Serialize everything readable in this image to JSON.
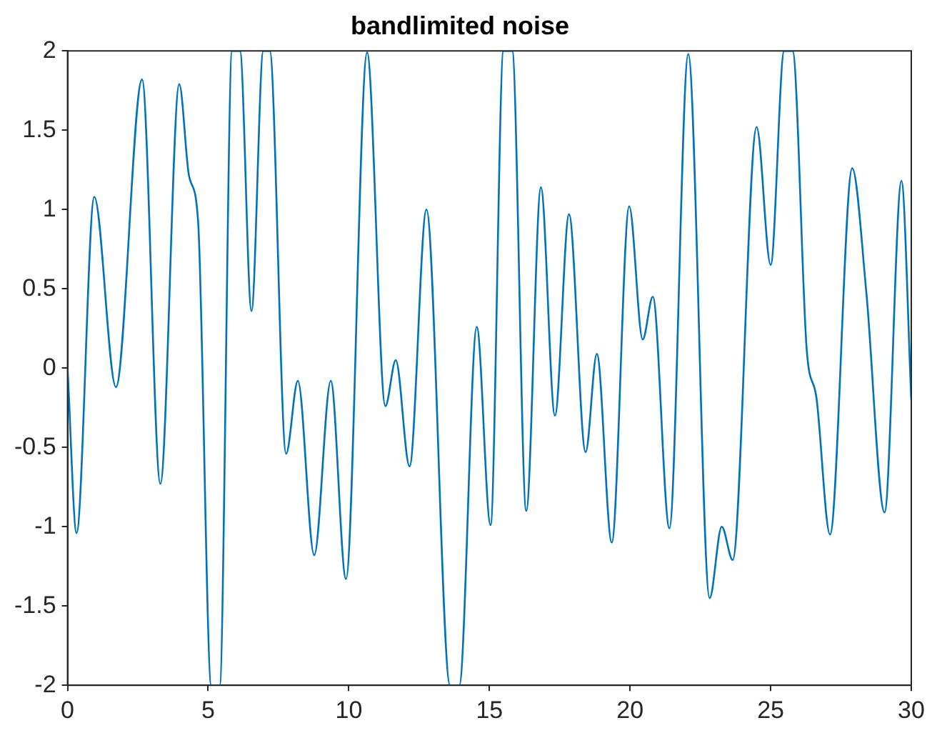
{
  "chart_data": {
    "type": "line",
    "title": "bandlimited noise",
    "x": [
      0,
      0.32,
      0.95,
      1.72,
      2.65,
      3.3,
      3.97,
      4.32,
      4.64,
      5.11,
      5.26,
      5.41,
      5.85,
      6.13,
      6.54,
      6.96,
      7.19,
      7.77,
      8.19,
      8.77,
      9.36,
      9.9,
      10.65,
      11.3,
      11.67,
      12.16,
      12.76,
      13.6,
      13.77,
      13.93,
      14.55,
      15.04,
      15.5,
      15.81,
      16.31,
      16.83,
      17.33,
      17.83,
      18.42,
      18.82,
      19.35,
      19.97,
      20.45,
      20.81,
      21.4,
      22.07,
      22.83,
      23.26,
      23.65,
      24.5,
      25.0,
      25.48,
      25.78,
      26.28,
      26.63,
      27.11,
      27.9,
      28.4,
      29.05,
      29.65,
      30
    ],
    "values": [
      0,
      -1.04,
      1.08,
      -0.12,
      1.82,
      -0.73,
      1.79,
      1.21,
      0.93,
      -2,
      -2,
      -2,
      2,
      2,
      0.36,
      2,
      2,
      -0.54,
      -0.08,
      -1.18,
      -0.08,
      -1.33,
      1.99,
      -0.24,
      0.05,
      -0.62,
      1.0,
      -2,
      -2,
      -2,
      0.26,
      -0.99,
      2,
      2,
      -0.9,
      1.14,
      -0.3,
      0.97,
      -0.53,
      0.09,
      -1.1,
      1.02,
      0.18,
      0.45,
      -1.01,
      1.98,
      -1.45,
      -1.0,
      -1.21,
      1.52,
      0.65,
      2,
      2,
      0.12,
      -0.19,
      -1.05,
      1.26,
      0.48,
      -0.91,
      1.18,
      -0.2
    ],
    "color": "#0072bd",
    "marker": "none",
    "grid": false,
    "legend": false,
    "xlim": [
      0,
      30
    ],
    "xticks": [
      0,
      5,
      10,
      15,
      20,
      25,
      30
    ],
    "ylim": [
      -2,
      2
    ],
    "yticks": [
      -2,
      -1.5,
      -1,
      -0.5,
      0,
      0.5,
      1,
      1.5,
      2
    ]
  }
}
